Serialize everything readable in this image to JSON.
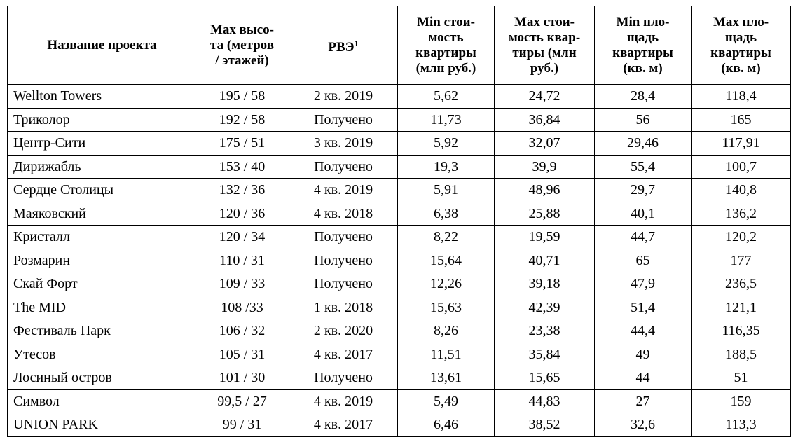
{
  "table": {
    "header": [
      "Название проекта",
      "Max высо-\nта (метров\n/ этажей)",
      {
        "text": "РВЭ",
        "note": "1"
      },
      "Min стои-\nмость\nквартиры\n(млн руб.)",
      "Max стои-\nмость квар-\nтиры (млн\nруб.)",
      "Min пло-\nщадь\nквартиры\n(кв. м)",
      "Max пло-\nщадь\nквартиры\n(кв. м)"
    ],
    "rows": [
      [
        "Wellton Towers",
        "195 / 58",
        "2 кв. 2019",
        "5,62",
        "24,72",
        "28,4",
        "118,4"
      ],
      [
        "Триколор",
        "192 / 58",
        "Получено",
        "11,73",
        "36,84",
        "56",
        "165"
      ],
      [
        "Центр-Сити",
        "175 / 51",
        "3 кв. 2019",
        "5,92",
        "32,07",
        "29,46",
        "117,91"
      ],
      [
        "Дирижабль",
        "153 / 40",
        "Получено",
        "19,3",
        "39,9",
        "55,4",
        "100,7"
      ],
      [
        "Сердце Столицы",
        "132 / 36",
        "4 кв. 2019",
        "5,91",
        "48,96",
        "29,7",
        "140,8"
      ],
      [
        "Маяковский",
        "120 / 36",
        "4 кв. 2018",
        "6,38",
        "25,88",
        "40,1",
        "136,2"
      ],
      [
        "Кристалл",
        "120 / 34",
        "Получено",
        "8,22",
        "19,59",
        "44,7",
        "120,2"
      ],
      [
        "Розмарин",
        "110 / 31",
        "Получено",
        "15,64",
        "40,71",
        "65",
        "177"
      ],
      [
        "Скай Форт",
        "109 / 33",
        "Получено",
        "12,26",
        "39,18",
        "47,9",
        "236,5"
      ],
      [
        "The MID",
        "108 /33",
        "1 кв. 2018",
        "15,63",
        "42,39",
        "51,4",
        "121,1"
      ],
      [
        "Фестиваль Парк",
        "106 / 32",
        "2 кв. 2020",
        "8,26",
        "23,38",
        "44,4",
        "116,35"
      ],
      [
        "Утесов",
        "105 / 31",
        "4 кв. 2017",
        "11,51",
        "35,84",
        "49",
        "188,5"
      ],
      [
        "Лосиный остров",
        "101 / 30",
        "Получено",
        "13,61",
        "15,65",
        "44",
        "51"
      ],
      [
        "Символ",
        "99,5 / 27",
        "4 кв. 2019",
        "5,49",
        "44,83",
        "27",
        "159"
      ],
      [
        "UNION PARK",
        "99 / 31",
        "4 кв. 2017",
        "6,46",
        "38,52",
        "32,6",
        "113,3"
      ]
    ]
  }
}
